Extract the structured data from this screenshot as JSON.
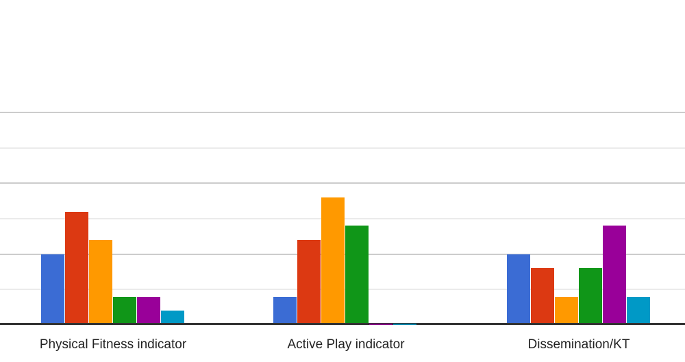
{
  "chart_data": {
    "type": "bar",
    "title": "",
    "categories": [
      "Physical Fitness indicator",
      "Active Play indicator",
      "Dissemination/KT"
    ],
    "series": [
      {
        "name": "blue",
        "color": "#3B6CD4",
        "values": [
          5,
          2,
          5
        ]
      },
      {
        "name": "red",
        "color": "#DC3912",
        "values": [
          8,
          6,
          4
        ]
      },
      {
        "name": "orange",
        "color": "#FF9900",
        "values": [
          6,
          9,
          2
        ]
      },
      {
        "name": "green",
        "color": "#109618",
        "values": [
          2,
          7,
          4
        ]
      },
      {
        "name": "purple",
        "color": "#990099",
        "values": [
          2,
          0,
          7
        ]
      },
      {
        "name": "cyan",
        "color": "#0099C6",
        "values": [
          1,
          0,
          2
        ]
      }
    ],
    "xlabel": "",
    "ylabel": "",
    "ylim": [
      0,
      15
    ],
    "y_axis_tick_labels_visible": false,
    "legend": "none",
    "gridlines": {
      "major_values": [
        5,
        10,
        15
      ],
      "minor_values": [
        2.5,
        7.5,
        12.5
      ],
      "major_color": "#cccccc",
      "minor_color": "#ebebeb"
    },
    "axis": {
      "baseline_color": "#333333",
      "label_color": "#222222"
    }
  }
}
